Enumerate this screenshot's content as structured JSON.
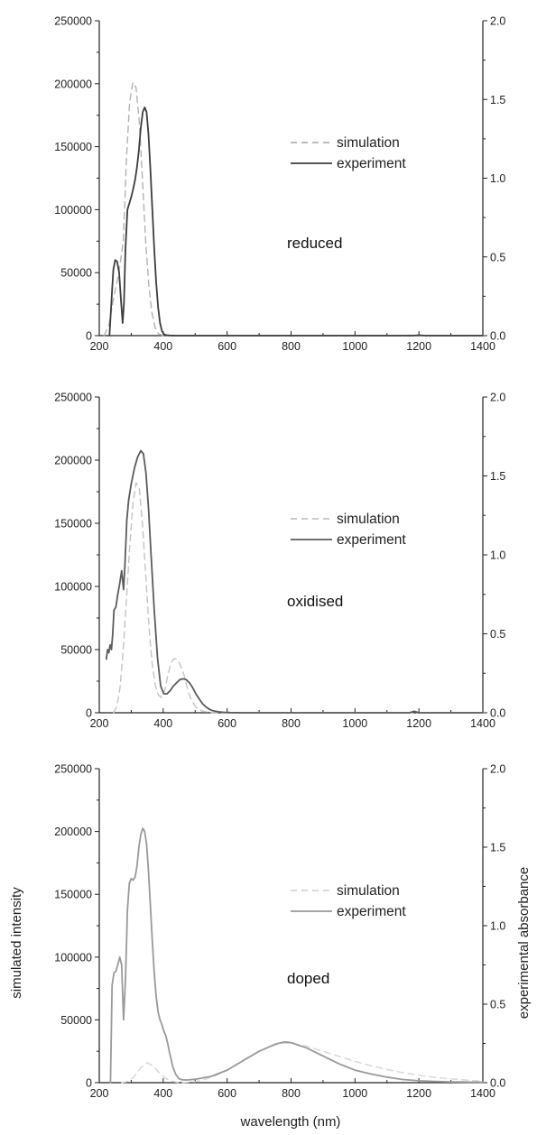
{
  "chart_data": [
    {
      "type": "line",
      "title": "",
      "annotation": "reduced",
      "xlabel": "",
      "ylabel": "",
      "y2label": "",
      "xlim": [
        200,
        1400
      ],
      "ylim": [
        0,
        250000
      ],
      "y2lim": [
        0,
        2.0
      ],
      "xticks": [
        "200",
        "400",
        "600",
        "800",
        "1000",
        "1200",
        "1400"
      ],
      "yticks": [
        "0",
        "50000",
        "100000",
        "150000",
        "200000",
        "250000"
      ],
      "y2ticks": [
        "0.0",
        "0.5",
        "1.0",
        "1.5",
        "2.0"
      ],
      "grid": false,
      "legend_position": "center-right",
      "series": [
        {
          "name": "simulation",
          "axis": "left",
          "style": "dashed",
          "color": "#b3b3b3",
          "x": [
            215,
            230,
            245,
            260,
            275,
            285,
            295,
            305,
            315,
            325,
            335,
            345,
            355,
            365,
            375,
            385,
            400,
            430,
            600,
            1400
          ],
          "y": [
            0,
            8000,
            30000,
            48000,
            75000,
            140000,
            185000,
            201000,
            197000,
            170000,
            125000,
            75000,
            40000,
            18000,
            6000,
            1500,
            0,
            0,
            0,
            0
          ]
        },
        {
          "name": "experiment",
          "axis": "right",
          "style": "solid",
          "color": "#3d3d3d",
          "x": [
            232,
            238,
            244,
            250,
            256,
            262,
            268,
            273,
            277,
            282,
            288,
            294,
            300,
            306,
            312,
            318,
            324,
            330,
            336,
            342,
            348,
            354,
            360,
            366,
            372,
            378,
            384,
            390,
            396,
            402,
            410,
            420,
            440,
            480,
            600,
            800,
            1000,
            1180,
            1200,
            1220,
            1400
          ],
          "y": [
            0.0,
            0.22,
            0.42,
            0.48,
            0.47,
            0.4,
            0.22,
            0.08,
            0.2,
            0.55,
            0.8,
            0.84,
            0.88,
            0.93,
            0.99,
            1.07,
            1.18,
            1.32,
            1.42,
            1.45,
            1.42,
            1.28,
            1.05,
            0.8,
            0.55,
            0.34,
            0.18,
            0.08,
            0.03,
            0.01,
            0.003,
            0.001,
            0.0,
            0.0,
            0.0,
            0.0,
            0.0,
            0.0,
            0.003,
            0.0,
            0.0
          ]
        }
      ]
    },
    {
      "type": "line",
      "title": "",
      "annotation": "oxidised",
      "xlabel": "",
      "ylabel": "",
      "y2label": "",
      "xlim": [
        200,
        1400
      ],
      "ylim": [
        0,
        250000
      ],
      "y2lim": [
        0,
        2.0
      ],
      "xticks": [
        "200",
        "400",
        "600",
        "800",
        "1000",
        "1200",
        "1400"
      ],
      "yticks": [
        "0",
        "50000",
        "100000",
        "150000",
        "200000",
        "250000"
      ],
      "y2ticks": [
        "0.0",
        "0.5",
        "1.0",
        "1.5",
        "2.0"
      ],
      "grid": false,
      "legend_position": "center-right",
      "series": [
        {
          "name": "simulation",
          "axis": "left",
          "style": "dashed",
          "color": "#c4c4c4",
          "x": [
            245,
            255,
            265,
            275,
            285,
            295,
            305,
            315,
            325,
            335,
            345,
            355,
            365,
            375,
            385,
            395,
            405,
            415,
            425,
            435,
            445,
            455,
            465,
            475,
            485,
            500,
            520,
            550,
            600,
            1400
          ],
          "y": [
            0,
            5000,
            20000,
            50000,
            90000,
            130000,
            165000,
            182000,
            178000,
            150000,
            110000,
            70000,
            40000,
            22000,
            14000,
            12000,
            18000,
            30000,
            40000,
            43000,
            42000,
            37000,
            30000,
            20000,
            12000,
            5000,
            1500,
            0,
            0,
            0
          ]
        },
        {
          "name": "experiment",
          "axis": "right",
          "style": "solid",
          "color": "#5c5c5c",
          "x": [
            222,
            226,
            230,
            234,
            238,
            242,
            246,
            252,
            258,
            264,
            270,
            276,
            280,
            286,
            292,
            300,
            310,
            320,
            330,
            338,
            346,
            354,
            362,
            372,
            382,
            392,
            402,
            412,
            422,
            432,
            442,
            452,
            462,
            472,
            482,
            492,
            502,
            512,
            522,
            532,
            542,
            552,
            562,
            575,
            590,
            610,
            650,
            700,
            800,
            1000,
            1170,
            1185,
            1200,
            1400
          ],
          "y": [
            0.34,
            0.4,
            0.38,
            0.43,
            0.4,
            0.5,
            0.65,
            0.67,
            0.75,
            0.82,
            0.9,
            0.78,
            0.92,
            1.22,
            1.35,
            1.45,
            1.55,
            1.62,
            1.66,
            1.64,
            1.52,
            1.3,
            1.0,
            0.65,
            0.35,
            0.17,
            0.12,
            0.12,
            0.14,
            0.17,
            0.19,
            0.21,
            0.215,
            0.21,
            0.19,
            0.16,
            0.12,
            0.09,
            0.06,
            0.04,
            0.025,
            0.015,
            0.01,
            0.006,
            0.003,
            0.001,
            0.0,
            0.0,
            0.0,
            0.0,
            0.0,
            0.01,
            0.0,
            0.0
          ]
        }
      ]
    },
    {
      "type": "line",
      "title": "",
      "annotation": "doped",
      "xlabel": "wavelength (nm)",
      "ylabel": "simulated intensity",
      "y2label": "experimental absorbance",
      "xlim": [
        200,
        1400
      ],
      "ylim": [
        0,
        250000
      ],
      "y2lim": [
        0,
        2.0
      ],
      "xticks": [
        "200",
        "400",
        "600",
        "800",
        "1000",
        "1200",
        "1400"
      ],
      "yticks": [
        "0",
        "50000",
        "100000",
        "150000",
        "200000",
        "250000"
      ],
      "y2ticks": [
        "0.0",
        "0.5",
        "1.0",
        "1.5",
        "2.0"
      ],
      "grid": false,
      "legend_position": "center-right",
      "series": [
        {
          "name": "simulation",
          "axis": "left",
          "style": "dashed",
          "color": "#d6d6d6",
          "x": [
            270,
            290,
            310,
            330,
            350,
            370,
            390,
            410,
            430,
            450,
            500,
            550,
            600,
            650,
            700,
            750,
            780,
            800,
            850,
            900,
            950,
            1000,
            1050,
            1100,
            1150,
            1200,
            1250,
            1300,
            1350,
            1400
          ],
          "y": [
            0,
            1000,
            5000,
            12000,
            16000,
            13000,
            7000,
            3000,
            1000,
            0,
            800,
            4000,
            10000,
            18000,
            25000,
            30000,
            31500,
            31500,
            29000,
            25000,
            21000,
            17000,
            13500,
            10500,
            8000,
            6000,
            4200,
            3000,
            2000,
            1200
          ]
        },
        {
          "name": "experiment",
          "axis": "right",
          "style": "solid",
          "color": "#9a9a9a",
          "x": [
            235,
            240,
            246,
            252,
            258,
            264,
            270,
            276,
            282,
            288,
            294,
            300,
            306,
            312,
            318,
            324,
            330,
            336,
            342,
            348,
            354,
            360,
            366,
            372,
            378,
            384,
            390,
            396,
            402,
            408,
            414,
            420,
            430,
            440,
            450,
            460,
            470,
            480,
            500,
            550,
            600,
            650,
            700,
            750,
            780,
            800,
            850,
            900,
            950,
            1000,
            1050,
            1100,
            1150,
            1200,
            1250,
            1300,
            1400
          ],
          "y": [
            0.0,
            0.62,
            0.7,
            0.71,
            0.75,
            0.8,
            0.75,
            0.4,
            0.65,
            1.1,
            1.27,
            1.3,
            1.29,
            1.31,
            1.38,
            1.5,
            1.58,
            1.62,
            1.6,
            1.52,
            1.35,
            1.12,
            0.9,
            0.7,
            0.55,
            0.45,
            0.4,
            0.37,
            0.33,
            0.3,
            0.25,
            0.19,
            0.1,
            0.05,
            0.025,
            0.018,
            0.017,
            0.018,
            0.022,
            0.04,
            0.08,
            0.14,
            0.2,
            0.245,
            0.26,
            0.255,
            0.22,
            0.17,
            0.12,
            0.08,
            0.055,
            0.035,
            0.02,
            0.012,
            0.008,
            0.005,
            0.003
          ]
        }
      ]
    }
  ]
}
